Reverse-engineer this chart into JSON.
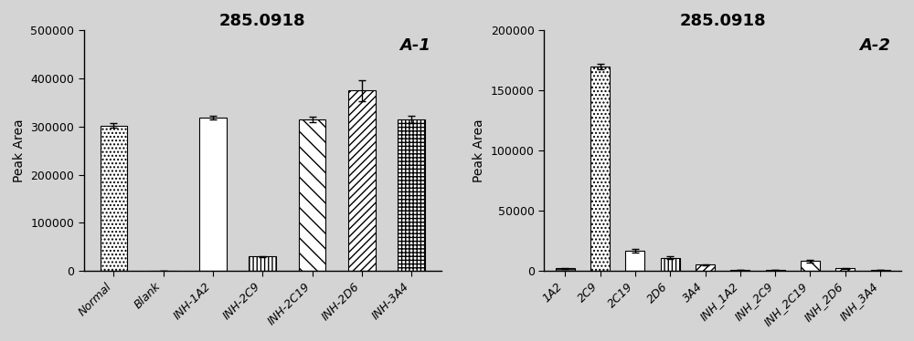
{
  "chart1": {
    "title": "285.0918",
    "label": "A-1",
    "ylabel": "Peak Area",
    "categories": [
      "Normal",
      "Blank",
      "INH-1A2",
      "INH-2C9",
      "INH-2C19",
      "INH-2D6",
      "INH-3A4"
    ],
    "values": [
      302000,
      300,
      318000,
      30000,
      315000,
      375000,
      315000
    ],
    "errors": [
      5000,
      100,
      4000,
      800,
      5000,
      22000,
      8000
    ],
    "ylim": [
      0,
      500000
    ],
    "yticks": [
      0,
      100000,
      200000,
      300000,
      400000,
      500000
    ],
    "hatches": [
      "....",
      "",
      "====",
      "||||",
      "\\\\\\\\",
      "////",
      "++++"
    ]
  },
  "chart2": {
    "title": "285.0918",
    "label": "A-2",
    "ylabel": "Peak Area",
    "categories": [
      "1A2",
      "2C9",
      "2C19",
      "2D6",
      "3A4",
      "INH_1A2",
      "INH_2C9",
      "INH_2C19",
      "INH_2D6",
      "INH_3A4"
    ],
    "values": [
      2000,
      170000,
      17000,
      11000,
      5000,
      500,
      500,
      8000,
      2000,
      500
    ],
    "errors": [
      200,
      2500,
      1500,
      1500,
      500,
      100,
      100,
      1000,
      300,
      100
    ],
    "ylim": [
      0,
      200000
    ],
    "yticks": [
      0,
      50000,
      100000,
      150000,
      200000
    ],
    "hatches": [
      "----",
      "....",
      "====",
      "||||",
      "////",
      "",
      "",
      "\\\\\\\\",
      "////",
      ""
    ]
  },
  "background_color": "#d4d4d4",
  "title_fontsize": 13,
  "label_fontsize": 10,
  "tick_fontsize": 9,
  "bar_width": 0.55
}
